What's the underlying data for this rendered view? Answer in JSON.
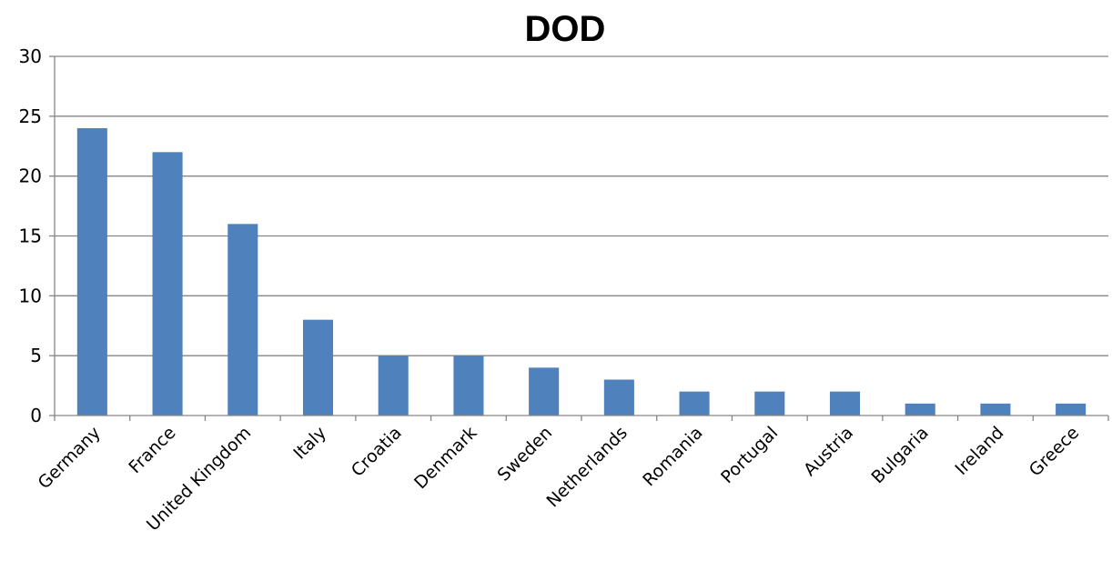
{
  "chart_data": {
    "type": "bar",
    "title": "DOD",
    "xlabel": "",
    "ylabel": "",
    "categories": [
      "Germany",
      "France",
      "United Kingdom",
      "Italy",
      "Croatia",
      "Denmark",
      "Sweden",
      "Netherlands",
      "Romania",
      "Portugal",
      "Austria",
      "Bulgaria",
      "Ireland",
      "Greece"
    ],
    "values": [
      24,
      22,
      16,
      8,
      5,
      5,
      4,
      3,
      2,
      2,
      2,
      1,
      1,
      1
    ],
    "ylim": [
      0,
      30
    ],
    "yticks": [
      0,
      5,
      10,
      15,
      20,
      25,
      30
    ],
    "grid": true,
    "legend": "none",
    "bar_color": "#4F81BD"
  }
}
